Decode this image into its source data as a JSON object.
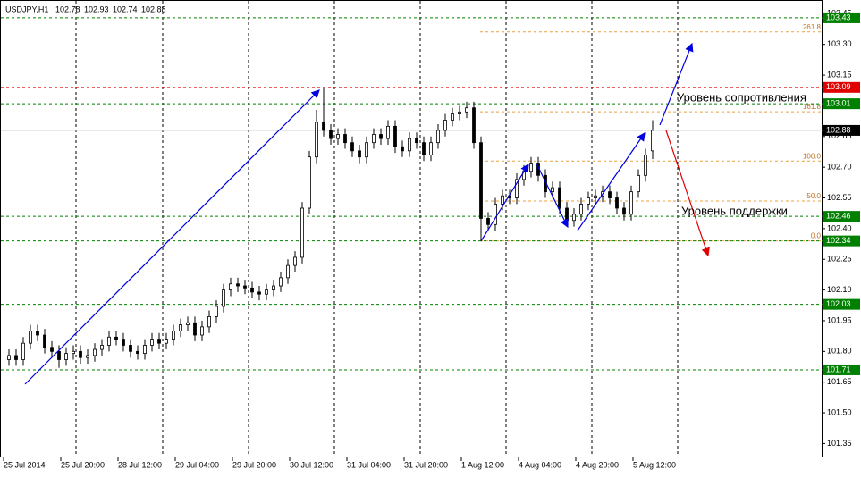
{
  "chart_data": {
    "type": "candlestick",
    "symbol": "USDJPY,H1",
    "header_ohlc": [
      102.78,
      102.93,
      102.74,
      102.88
    ],
    "categories": [
      "25 Jul 2014",
      null,
      null,
      null,
      null,
      null,
      null,
      null,
      "25 Jul 20:00",
      null,
      null,
      null,
      null,
      null,
      null,
      null,
      "28 Jul 12:00",
      null,
      null,
      null,
      null,
      null,
      null,
      null,
      "29 Jul 04:00",
      null,
      null,
      null,
      null,
      null,
      null,
      null,
      "29 Jul 20:00",
      null,
      null,
      null,
      null,
      null,
      null,
      null,
      "30 Jul 12:00",
      null,
      null,
      null,
      null,
      null,
      null,
      null,
      "31 Jul 04:00",
      null,
      null,
      null,
      null,
      null,
      null,
      null,
      "31 Jul 20:00",
      null,
      null,
      null,
      null,
      null,
      null,
      null,
      "1 Aug 12:00",
      null,
      null,
      null,
      null,
      null,
      null,
      null,
      "4 Aug 04:00",
      null,
      null,
      null,
      null,
      null,
      null,
      null,
      "4 Aug 20:00",
      null,
      null,
      null,
      null,
      null,
      null,
      null,
      "5 Aug 12:00",
      null,
      null
    ],
    "open": [
      101.76,
      101.78,
      101.76,
      101.84,
      101.9,
      101.88,
      101.82,
      101.8,
      101.76,
      101.79,
      101.8,
      101.77,
      101.78,
      101.81,
      101.83,
      101.87,
      101.86,
      101.83,
      101.8,
      101.79,
      101.83,
      101.86,
      101.84,
      101.86,
      101.9,
      101.93,
      101.94,
      101.88,
      101.92,
      101.97,
      102.02,
      102.1,
      102.13,
      102.12,
      102.11,
      102.09,
      102.08,
      102.1,
      102.12,
      102.16,
      102.22,
      102.26,
      102.5,
      102.75,
      102.92,
      102.88,
      102.84,
      102.86,
      102.82,
      102.78,
      102.75,
      102.82,
      102.86,
      102.84,
      102.9,
      102.8,
      102.78,
      102.84,
      102.82,
      102.76,
      102.82,
      102.88,
      102.93,
      102.96,
      102.97,
      102.99,
      102.82,
      102.45,
      102.42,
      102.52,
      102.56,
      102.55,
      102.64,
      102.68,
      102.72,
      102.66,
      102.58,
      102.6,
      102.5,
      102.44,
      102.47,
      102.52,
      102.55,
      102.56,
      102.58,
      102.55,
      102.5,
      102.47,
      102.58,
      102.66,
      102.78
    ],
    "high": [
      101.81,
      101.81,
      101.87,
      101.93,
      101.93,
      101.91,
      101.85,
      101.83,
      101.82,
      101.83,
      101.83,
      101.81,
      101.84,
      101.86,
      101.9,
      101.9,
      101.89,
      101.86,
      101.83,
      101.86,
      101.89,
      101.89,
      101.89,
      101.93,
      101.96,
      101.97,
      101.97,
      101.95,
      102.0,
      102.05,
      102.13,
      102.16,
      102.16,
      102.15,
      102.14,
      102.12,
      102.13,
      102.15,
      102.19,
      102.25,
      102.29,
      102.53,
      102.78,
      102.98,
      103.09,
      102.91,
      102.89,
      102.89,
      102.85,
      102.81,
      102.85,
      102.89,
      102.89,
      102.93,
      102.93,
      102.83,
      102.87,
      102.87,
      102.85,
      102.85,
      102.91,
      102.96,
      102.99,
      103.0,
      103.02,
      103.02,
      102.85,
      102.48,
      102.55,
      102.59,
      102.59,
      102.67,
      102.71,
      102.75,
      102.75,
      102.69,
      102.63,
      102.63,
      102.53,
      102.5,
      102.55,
      102.58,
      102.59,
      102.61,
      102.61,
      102.58,
      102.53,
      102.61,
      102.69,
      102.79,
      102.93
    ],
    "low": [
      101.73,
      101.73,
      101.73,
      101.81,
      101.85,
      101.79,
      101.77,
      101.72,
      101.73,
      101.76,
      101.74,
      101.74,
      101.75,
      101.78,
      101.8,
      101.83,
      101.8,
      101.77,
      101.76,
      101.76,
      101.8,
      101.81,
      101.81,
      101.83,
      101.87,
      101.9,
      101.85,
      101.85,
      101.89,
      101.94,
      101.99,
      102.07,
      102.09,
      102.08,
      102.06,
      102.05,
      102.05,
      102.07,
      102.09,
      102.13,
      102.19,
      102.23,
      102.47,
      102.72,
      102.85,
      102.81,
      102.81,
      102.79,
      102.75,
      102.72,
      102.72,
      102.79,
      102.81,
      102.81,
      102.77,
      102.75,
      102.75,
      102.79,
      102.73,
      102.73,
      102.79,
      102.85,
      102.9,
      102.93,
      102.94,
      102.79,
      102.34,
      102.39,
      102.39,
      102.49,
      102.52,
      102.52,
      102.61,
      102.65,
      102.63,
      102.55,
      102.55,
      102.47,
      102.41,
      102.41,
      102.44,
      102.49,
      102.52,
      102.53,
      102.52,
      102.47,
      102.44,
      102.44,
      102.55,
      102.63,
      102.74
    ],
    "close": [
      101.78,
      101.76,
      101.84,
      101.9,
      101.88,
      101.82,
      101.8,
      101.76,
      101.79,
      101.8,
      101.77,
      101.78,
      101.81,
      101.83,
      101.87,
      101.86,
      101.83,
      101.8,
      101.79,
      101.83,
      101.86,
      101.84,
      101.86,
      101.9,
      101.93,
      101.94,
      101.88,
      101.92,
      101.97,
      102.02,
      102.1,
      102.13,
      102.12,
      102.11,
      102.09,
      102.08,
      102.1,
      102.12,
      102.16,
      102.22,
      102.26,
      102.5,
      102.75,
      102.92,
      102.88,
      102.84,
      102.86,
      102.82,
      102.78,
      102.75,
      102.82,
      102.86,
      102.84,
      102.9,
      102.8,
      102.78,
      102.84,
      102.82,
      102.76,
      102.82,
      102.88,
      102.93,
      102.96,
      102.97,
      102.99,
      102.82,
      102.45,
      102.42,
      102.52,
      102.56,
      102.55,
      102.64,
      102.68,
      102.72,
      102.66,
      102.58,
      102.6,
      102.5,
      102.44,
      102.47,
      102.52,
      102.55,
      102.56,
      102.58,
      102.55,
      102.5,
      102.47,
      102.58,
      102.66,
      102.76,
      102.88
    ],
    "ylim": [
      101.282,
      103.517
    ],
    "yticks": [
      101.35,
      {
        "value": 101.5,
        "label": "101.50"
      },
      101.65,
      {
        "value": 101.8,
        "label": "101.80"
      },
      101.95,
      {
        "value": 102.1,
        "label": "102.10"
      },
      102.25,
      {
        "value": 102.4,
        "label": "102.40"
      },
      102.55,
      {
        "value": 102.7,
        "label": "102.70"
      },
      102.85,
      {
        "value": 103,
        "label": "103.00"
      },
      103.15,
      {
        "value": 103.3,
        "label": "103.30"
      },
      103.45
    ],
    "grid": true,
    "levels": [
      {
        "price": 103.43,
        "color": "#008000"
      },
      {
        "price": 103.09,
        "color": "#e00000"
      },
      {
        "price": 103.01,
        "color": "#008000"
      },
      {
        "price": 102.88,
        "color": "#000000"
      },
      {
        "price": 102.46,
        "color": "#008000"
      },
      {
        "price": 102.34,
        "color": "#008000"
      },
      {
        "price": 102.03,
        "color": "#008000"
      },
      {
        "price": 101.71,
        "color": "#008000"
      }
    ],
    "fibo": [
      {
        "label": "261.8",
        "price": 103.361
      },
      {
        "label": "161.8",
        "price": 102.971
      },
      {
        "label": "100.0",
        "price": 102.73
      },
      {
        "label": "50.0",
        "price": 102.535
      },
      {
        "label": "0.0",
        "price": 102.34
      }
    ],
    "annotations": [
      "Уровень сопротивления",
      "Уровень поддержки"
    ]
  }
}
